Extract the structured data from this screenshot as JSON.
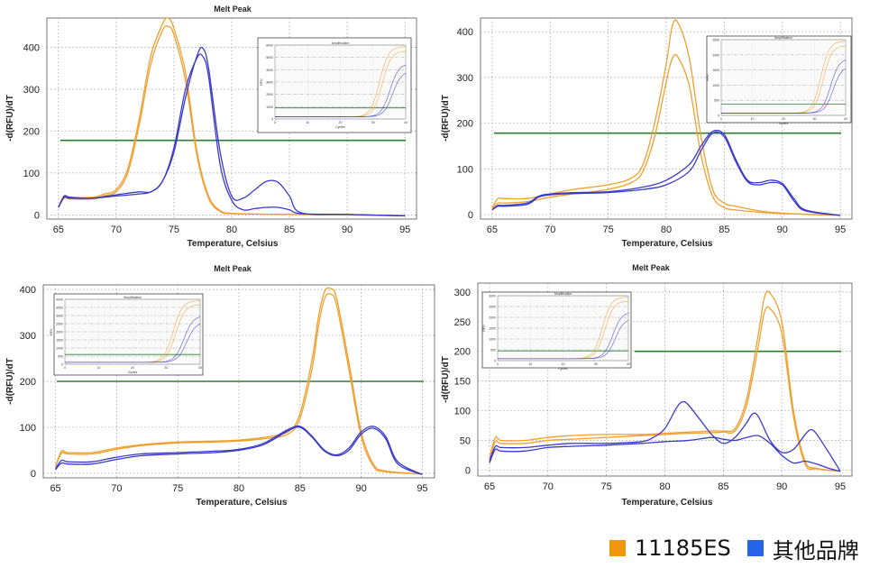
{
  "colors": {
    "orange": "#F0A030",
    "blue": "#3A3AC8",
    "threshold": "#2E7D32",
    "grid": "#9a9a9a",
    "legend_orange": "#F0960F",
    "legend_blue": "#2563EB"
  },
  "legend": {
    "items": [
      {
        "label": "11185ES",
        "color": "#F0960F"
      },
      {
        "label": "其他品牌",
        "color": "#2563EB"
      }
    ]
  },
  "inset_text": {
    "title": "Amplification",
    "xlabel": "Cycles",
    "ylabel": "RFU"
  },
  "chart_data": [
    {
      "type": "line",
      "title": "Melt Peak",
      "xlabel": "Temperature, Celsius",
      "ylabel": "-d(RFU)/dT",
      "xlim": [
        64,
        96
      ],
      "ylim": [
        -10,
        470
      ],
      "xticks": [
        65,
        70,
        75,
        80,
        85,
        90,
        95
      ],
      "yticks": [
        0,
        100,
        200,
        300,
        400
      ],
      "grid": true,
      "threshold": 178,
      "series": [
        {
          "color": "orange",
          "x": [
            65,
            65.5,
            66,
            68,
            69,
            70,
            71,
            72,
            73,
            74,
            74.5,
            75,
            76,
            77,
            78,
            79,
            80,
            82,
            85,
            90,
            95
          ],
          "y": [
            18,
            45,
            42,
            42,
            50,
            60,
            110,
            230,
            380,
            455,
            470,
            445,
            340,
            150,
            45,
            10,
            4,
            2,
            1,
            0,
            -2
          ]
        },
        {
          "color": "orange",
          "x": [
            65,
            65.5,
            66,
            68,
            69,
            70,
            71,
            72,
            73,
            74,
            74.5,
            75,
            76,
            77,
            78,
            79,
            80,
            82,
            85,
            90,
            95
          ],
          "y": [
            18,
            40,
            38,
            38,
            46,
            55,
            100,
            215,
            360,
            440,
            450,
            430,
            320,
            140,
            40,
            8,
            3,
            2,
            1,
            0,
            -2
          ]
        },
        {
          "color": "blue",
          "x": [
            65,
            65.5,
            66,
            68,
            70,
            72,
            73,
            74,
            75,
            76,
            77,
            77.5,
            78,
            79,
            80,
            81,
            82,
            83,
            84,
            85,
            86,
            90,
            95
          ],
          "y": [
            18,
            45,
            42,
            40,
            48,
            55,
            55,
            80,
            150,
            280,
            380,
            398,
            350,
            150,
            45,
            40,
            60,
            80,
            78,
            45,
            5,
            1,
            -2
          ]
        },
        {
          "color": "blue",
          "x": [
            65,
            65.5,
            66,
            68,
            70,
            72,
            73,
            74,
            75,
            76,
            77,
            77.5,
            78,
            79,
            80,
            81,
            82,
            83,
            84,
            85,
            86,
            90,
            95
          ],
          "y": [
            18,
            42,
            40,
            40,
            45,
            50,
            55,
            80,
            160,
            300,
            375,
            378,
            330,
            120,
            35,
            12,
            15,
            18,
            18,
            12,
            3,
            1,
            -2
          ]
        }
      ],
      "inset": {
        "xticks": [
          "0",
          "10",
          "20",
          "30",
          "40"
        ],
        "yticks": [
          "6000",
          "5000",
          "4000",
          "3000",
          "2000",
          "1000",
          "0"
        ]
      }
    },
    {
      "type": "line",
      "title": "",
      "xlabel": "Temperature, Celsius",
      "ylabel": "-d(RFU)/dT",
      "xlim": [
        64,
        96
      ],
      "ylim": [
        -10,
        430
      ],
      "xticks": [
        65,
        70,
        75,
        80,
        85,
        90,
        95
      ],
      "yticks": [
        0,
        100,
        200,
        300,
        400
      ],
      "grid": true,
      "threshold": 178,
      "series": [
        {
          "color": "orange",
          "x": [
            65,
            65.5,
            66,
            68,
            70,
            72,
            75,
            77,
            78,
            79,
            80,
            80.5,
            81,
            82,
            83,
            84,
            85,
            86,
            88,
            90,
            95
          ],
          "y": [
            15,
            35,
            35,
            35,
            45,
            55,
            65,
            80,
            110,
            200,
            330,
            410,
            420,
            340,
            170,
            55,
            25,
            18,
            8,
            3,
            -2
          ]
        },
        {
          "color": "orange",
          "x": [
            65,
            65.5,
            66,
            68,
            70,
            72,
            75,
            77,
            78,
            79,
            80,
            80.5,
            81,
            82,
            83,
            84,
            85,
            86,
            88,
            90,
            95
          ],
          "y": [
            12,
            25,
            25,
            28,
            38,
            45,
            55,
            70,
            95,
            170,
            290,
            340,
            345,
            280,
            130,
            40,
            15,
            10,
            5,
            2,
            -2
          ]
        },
        {
          "color": "blue",
          "x": [
            65,
            65.5,
            66,
            68,
            69,
            70,
            72,
            75,
            78,
            80,
            82,
            83,
            84,
            85,
            86,
            87,
            88,
            89,
            90,
            91,
            92,
            95
          ],
          "y": [
            10,
            20,
            20,
            25,
            40,
            45,
            48,
            50,
            60,
            75,
            110,
            150,
            182,
            175,
            120,
            75,
            70,
            75,
            68,
            35,
            10,
            -2
          ]
        },
        {
          "color": "blue",
          "x": [
            65,
            65.5,
            66,
            68,
            69,
            70,
            72,
            75,
            78,
            80,
            82,
            83,
            84,
            85,
            86,
            87,
            88,
            89,
            90,
            91,
            92,
            95
          ],
          "y": [
            10,
            18,
            18,
            22,
            38,
            43,
            46,
            48,
            55,
            65,
            95,
            140,
            178,
            170,
            115,
            72,
            65,
            70,
            65,
            30,
            8,
            -2
          ]
        }
      ],
      "inset": {
        "xticks": [
          "0",
          "10",
          "20",
          "30",
          "40"
        ],
        "yticks": [
          "2500",
          "2000",
          "1500",
          "1000",
          "500",
          "0"
        ]
      }
    },
    {
      "type": "line",
      "title": "Melt Peak",
      "xlabel": "Temperature, Celsius",
      "ylabel": "-d(RFU)/dT",
      "xlim": [
        64,
        96
      ],
      "ylim": [
        -10,
        410
      ],
      "xticks": [
        65,
        70,
        75,
        80,
        85,
        90,
        95
      ],
      "yticks": [
        0,
        100,
        200,
        300,
        400
      ],
      "grid": true,
      "threshold": 200,
      "series": [
        {
          "color": "orange",
          "x": [
            65,
            65.5,
            66,
            68,
            70,
            72,
            75,
            78,
            80,
            82,
            84,
            85,
            86,
            86.5,
            87,
            87.5,
            88,
            89,
            90,
            91,
            92,
            95
          ],
          "y": [
            15,
            48,
            45,
            45,
            55,
            62,
            68,
            70,
            72,
            78,
            90,
            130,
            250,
            340,
            395,
            402,
            380,
            240,
            90,
            20,
            5,
            -2
          ]
        },
        {
          "color": "orange",
          "x": [
            65,
            65.5,
            66,
            68,
            70,
            72,
            75,
            78,
            80,
            82,
            84,
            85,
            86,
            86.5,
            87,
            87.5,
            88,
            89,
            90,
            91,
            92,
            95
          ],
          "y": [
            15,
            44,
            42,
            42,
            52,
            60,
            66,
            68,
            70,
            75,
            85,
            120,
            230,
            320,
            380,
            390,
            365,
            225,
            80,
            15,
            3,
            -2
          ]
        },
        {
          "color": "blue",
          "x": [
            65,
            65.5,
            66,
            68,
            70,
            72,
            75,
            78,
            80,
            82,
            84,
            85,
            86,
            87,
            88,
            89,
            90,
            91,
            92,
            93,
            95
          ],
          "y": [
            10,
            28,
            25,
            25,
            35,
            42,
            45,
            48,
            52,
            65,
            95,
            102,
            80,
            50,
            40,
            55,
            90,
            102,
            80,
            25,
            -3
          ]
        },
        {
          "color": "blue",
          "x": [
            65,
            65.5,
            66,
            68,
            70,
            72,
            75,
            78,
            80,
            82,
            84,
            85,
            86,
            87,
            88,
            89,
            90,
            91,
            92,
            93,
            95
          ],
          "y": [
            8,
            22,
            20,
            20,
            30,
            38,
            42,
            45,
            50,
            62,
            92,
            100,
            78,
            48,
            38,
            50,
            85,
            98,
            75,
            20,
            -3
          ]
        }
      ],
      "inset": {
        "xticks": [
          "0",
          "10",
          "20",
          "30",
          "40"
        ],
        "yticks": [
          "4000",
          "3500",
          "3000",
          "2500",
          "2000",
          "1500",
          "1000",
          "500",
          "0"
        ]
      }
    },
    {
      "type": "line",
      "title": "Melt Peak",
      "xlabel": "Temperature, Celsius",
      "ylabel": "-d(RFU)/dT",
      "xlim": [
        64,
        96
      ],
      "ylim": [
        -10,
        315
      ],
      "xticks": [
        65,
        70,
        75,
        80,
        85,
        90,
        95
      ],
      "yticks": [
        0,
        50,
        100,
        150,
        200,
        250,
        300
      ],
      "grid": true,
      "threshold": 200,
      "series": [
        {
          "color": "orange",
          "x": [
            65,
            65.5,
            66,
            68,
            70,
            72,
            75,
            78,
            80,
            82,
            84,
            85,
            86,
            87,
            88,
            88.5,
            89,
            90,
            91,
            92,
            93,
            95
          ],
          "y": [
            20,
            55,
            50,
            50,
            55,
            58,
            60,
            60,
            62,
            64,
            66,
            66,
            70,
            120,
            230,
            290,
            298,
            250,
            100,
            15,
            3,
            -2
          ]
        },
        {
          "color": "orange",
          "x": [
            65,
            65.5,
            66,
            68,
            70,
            72,
            75,
            78,
            80,
            82,
            84,
            85,
            86,
            87,
            88,
            88.5,
            89,
            90,
            91,
            92,
            93,
            95
          ],
          "y": [
            18,
            48,
            45,
            45,
            50,
            52,
            55,
            58,
            60,
            62,
            63,
            64,
            66,
            110,
            210,
            265,
            272,
            230,
            90,
            10,
            2,
            -2
          ]
        },
        {
          "color": "blue",
          "x": [
            65,
            65.5,
            66,
            68,
            70,
            72,
            75,
            78,
            79,
            80,
            81,
            81.5,
            82,
            83,
            84,
            85,
            86,
            87,
            87.5,
            88,
            89,
            90,
            91,
            92,
            92.5,
            93,
            94,
            95
          ],
          "y": [
            15,
            40,
            38,
            38,
            42,
            45,
            45,
            48,
            55,
            70,
            105,
            115,
            110,
            85,
            60,
            45,
            55,
            80,
            95,
            90,
            50,
            30,
            35,
            60,
            68,
            60,
            30,
            -2
          ]
        },
        {
          "color": "blue",
          "x": [
            65,
            65.5,
            66,
            68,
            70,
            72,
            75,
            78,
            80,
            82,
            84,
            85,
            86,
            87,
            88,
            89,
            90,
            91,
            92,
            93,
            94,
            95
          ],
          "y": [
            12,
            35,
            32,
            32,
            38,
            40,
            42,
            45,
            48,
            50,
            55,
            52,
            50,
            55,
            58,
            45,
            25,
            12,
            15,
            10,
            3,
            -2
          ]
        }
      ],
      "inset": {
        "xticks": [
          "0",
          "10",
          "20",
          "30",
          "40"
        ],
        "yticks": [
          "3000",
          "2500",
          "2000",
          "1500",
          "1000",
          "500",
          "0"
        ]
      }
    }
  ]
}
